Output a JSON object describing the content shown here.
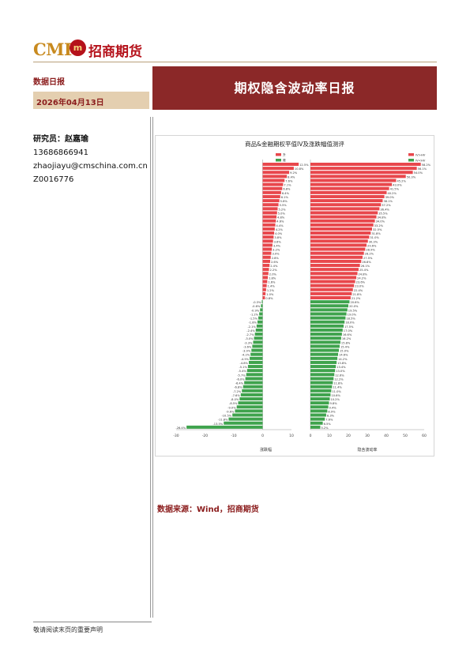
{
  "header": {
    "logo_text": "CMF",
    "logo_badge": "m",
    "company": "招商期货",
    "report_type": "数据日报",
    "date": "2026年04月13日",
    "title": "期权隐含波动率日报"
  },
  "author": {
    "label": "研究员：赵嘉瑜",
    "phone": "13686866941",
    "email": "zhaojiayu@cmschina.com.cn",
    "license": "Z0016776"
  },
  "source": "数据来源：Wind，招商期货",
  "footer": "敬请阅读末页的重要声明",
  "chart_data": {
    "type": "bar",
    "title": "商品&金融期权平值IV及涨跌幅值测评",
    "panels": [
      {
        "xlabel": "涨跌幅",
        "xlim": [
          -30,
          10
        ],
        "legend": [
          "升",
          "降"
        ],
        "values": [
          12.5,
          10.8,
          9.2,
          8.4,
          7.6,
          7.1,
          6.8,
          6.4,
          6.1,
          5.8,
          5.5,
          5.2,
          5.0,
          4.8,
          4.6,
          4.4,
          4.2,
          4.0,
          3.8,
          3.6,
          3.4,
          3.2,
          3.0,
          2.8,
          2.6,
          2.4,
          2.2,
          2.0,
          1.8,
          1.6,
          1.4,
          1.2,
          1.0,
          0.8,
          -0.3,
          -0.6,
          -0.9,
          -1.2,
          -1.5,
          -1.8,
          -2.1,
          -2.4,
          -2.7,
          -3.0,
          -3.3,
          -3.6,
          -3.9,
          -4.2,
          -4.5,
          -4.8,
          -5.1,
          -5.4,
          -5.7,
          -6.0,
          -6.4,
          -6.8,
          -7.2,
          -7.6,
          -8.0,
          -8.5,
          -9.0,
          -9.6,
          -10.5,
          -11.8,
          -13.5,
          -26.4
        ]
      },
      {
        "xlabel": "隐含波动率",
        "xlim": [
          0,
          60
        ],
        "legend": [
          "IV>HV",
          "IV<HV"
        ],
        "values": [
          58.2,
          56.1,
          54.0,
          50.3,
          45.2,
          43.0,
          41.5,
          40.2,
          39.0,
          38.1,
          37.2,
          36.4,
          35.5,
          34.8,
          34.0,
          33.2,
          32.5,
          31.8,
          31.0,
          30.3,
          29.6,
          28.9,
          28.2,
          27.5,
          26.8,
          26.1,
          25.4,
          24.8,
          24.2,
          23.6,
          23.0,
          22.4,
          21.8,
          21.2,
          20.6,
          20.0,
          19.5,
          19.0,
          18.5,
          18.0,
          17.5,
          17.0,
          16.6,
          16.2,
          15.8,
          15.4,
          15.0,
          14.6,
          14.2,
          13.8,
          13.4,
          13.0,
          12.6,
          12.2,
          11.8,
          11.4,
          11.0,
          10.6,
          10.2,
          9.8,
          9.4,
          8.9,
          8.3,
          7.6,
          6.5,
          5.2
        ]
      }
    ]
  }
}
